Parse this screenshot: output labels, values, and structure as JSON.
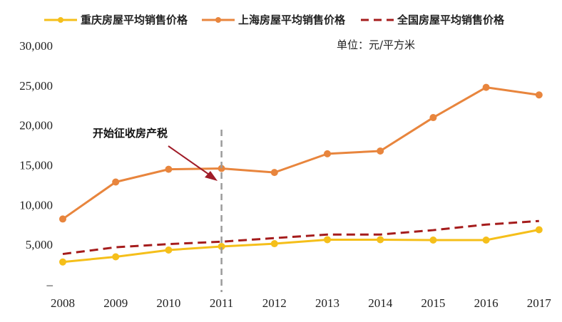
{
  "chart_data": {
    "type": "line",
    "categories": [
      "2008",
      "2009",
      "2010",
      "2011",
      "2012",
      "2013",
      "2014",
      "2015",
      "2016",
      "2017"
    ],
    "series": [
      {
        "name": "重庆房屋平均销售价格",
        "color": "#F5BF1A",
        "style": "solid-marker",
        "values": [
          2800,
          3450,
          4300,
          4750,
          5100,
          5600,
          5600,
          5550,
          5550,
          6850
        ]
      },
      {
        "name": "上海房屋平均销售价格",
        "color": "#E8853D",
        "style": "solid-marker",
        "values": [
          8200,
          12850,
          14450,
          14550,
          14050,
          16400,
          16750,
          20950,
          24750,
          23800
        ]
      },
      {
        "name": "全国房屋平均销售价格",
        "color": "#A51C1C",
        "style": "dashed",
        "values": [
          3800,
          4650,
          5050,
          5350,
          5800,
          6250,
          6250,
          6800,
          7500,
          7950
        ]
      }
    ],
    "y_ticks": [
      "30,000",
      "25,000",
      "20,000",
      "15,000",
      "10,000",
      "5,000",
      "–"
    ],
    "ylim": [
      0,
      30000
    ],
    "unit": "单位：元/平方米",
    "annotation": {
      "text": "开始征收房产税",
      "category": "2011"
    },
    "legend_position": "top"
  }
}
